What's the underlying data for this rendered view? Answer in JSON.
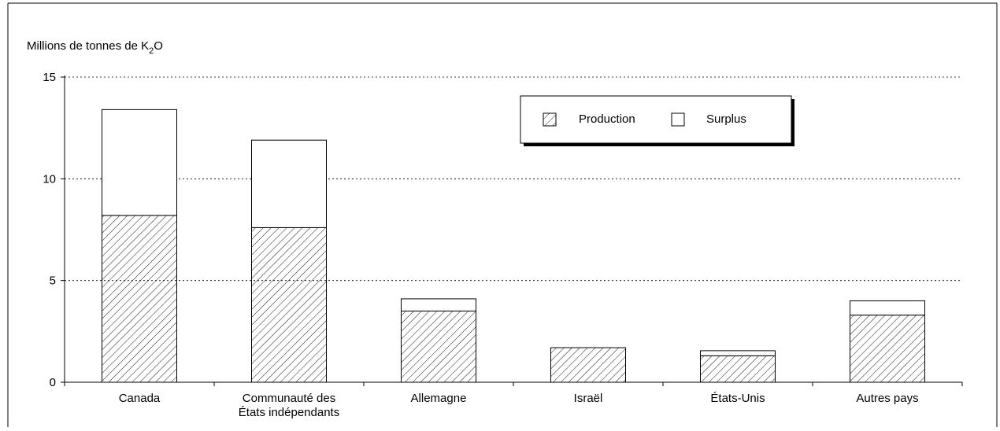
{
  "chart_data": {
    "type": "bar",
    "stacked": true,
    "ylabel_prefix": "Millions de tonnes de K",
    "ylabel_sub": "2",
    "ylabel_suffix": "O",
    "categories": [
      [
        "Canada"
      ],
      [
        "Communauté des",
        "États indépendants"
      ],
      [
        "Allemagne"
      ],
      [
        "Israël"
      ],
      [
        "États-Unis"
      ],
      [
        "Autres pays"
      ]
    ],
    "series": [
      {
        "name": "Production",
        "values": [
          8.2,
          7.6,
          3.5,
          1.7,
          1.3,
          3.3
        ]
      },
      {
        "name": "Surplus",
        "values": [
          5.2,
          4.3,
          0.6,
          0.0,
          0.25,
          0.7
        ]
      }
    ],
    "ylim": [
      0,
      15
    ],
    "yticks": [
      0,
      5,
      10,
      15
    ],
    "grid": true,
    "legend_position": "top-right"
  }
}
